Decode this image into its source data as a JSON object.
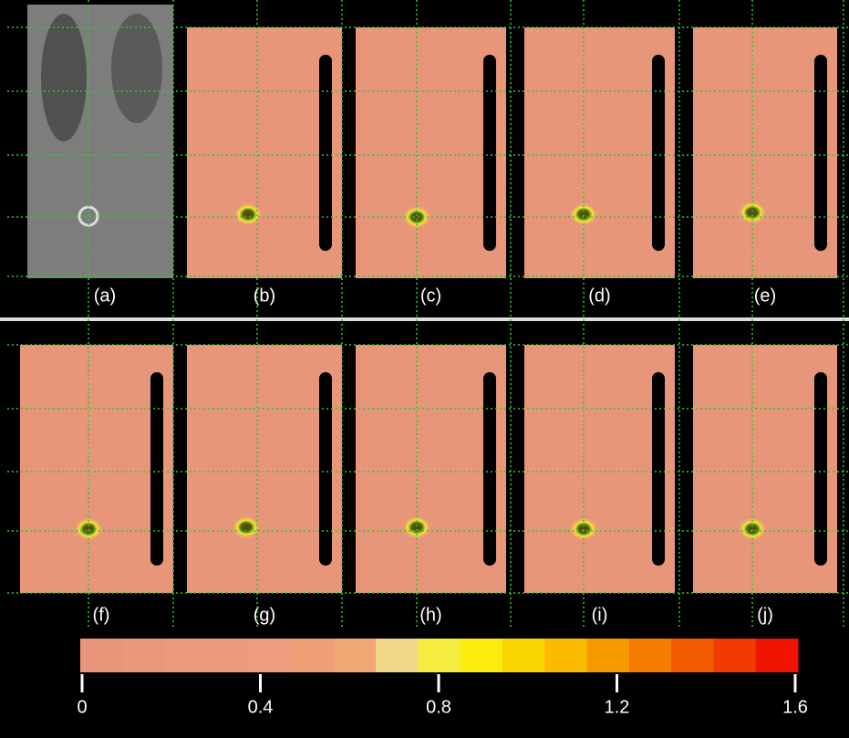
{
  "panels": [
    "(a)",
    "(b)",
    "(c)",
    "(d)",
    "(e)",
    "(f)",
    "(g)",
    "(h)",
    "(i)",
    "(j)"
  ],
  "colorbar": {
    "lim": [
      0,
      1.6
    ],
    "ticks": [
      0,
      0.4,
      0.8,
      1.2,
      1.6
    ],
    "colors": [
      "#e8967a",
      "#e9987b",
      "#eb9a7c",
      "#ec9b7c",
      "#ed9d7d",
      "#ef9f78",
      "#f2a875",
      "#f0d68a",
      "#f5ee40",
      "#fbec10",
      "#fbd500",
      "#fbbb00",
      "#f79a00",
      "#f47a00",
      "#f25a00",
      "#f03a00",
      "#ee1400"
    ]
  }
}
